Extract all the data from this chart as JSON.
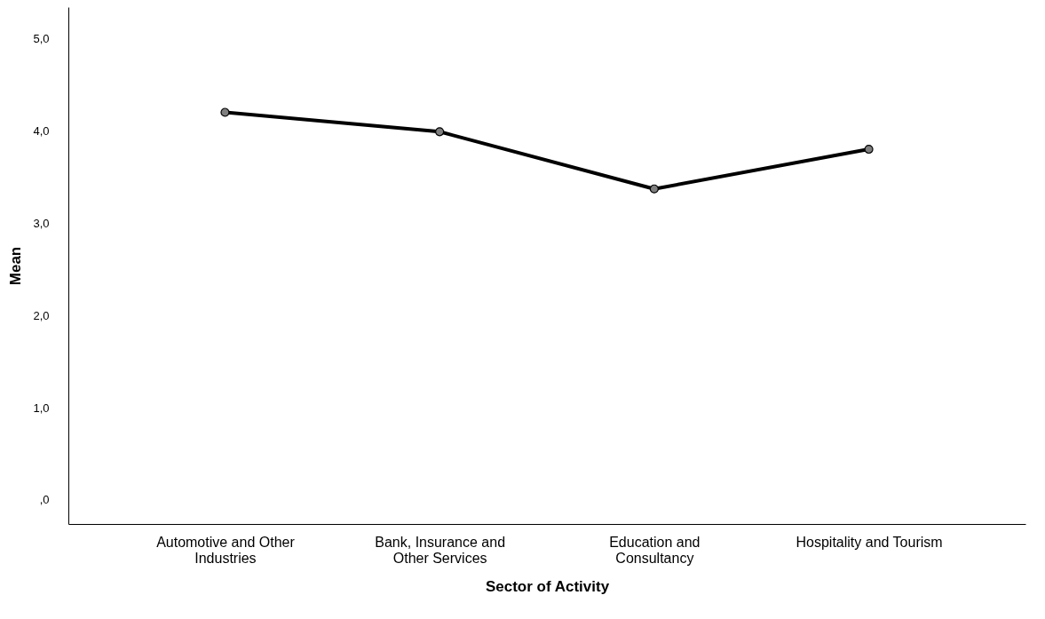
{
  "chart_data": {
    "type": "line",
    "xlabel": "Sector of Activity",
    "ylabel": "Mean",
    "categories": [
      "Automotive and Other Industries",
      "Bank, Insurance and Other Services",
      "Education and Consultancy",
      "Hospitality and Tourism"
    ],
    "series": [
      {
        "color": "#000000",
        "values": [
          4.2,
          3.99,
          3.37,
          3.8
        ]
      }
    ],
    "ylim": [
      -0.26,
      5.34
    ],
    "yticks": [
      {
        "value": 0,
        "label": ",0"
      },
      {
        "value": 1,
        "label": "1,0"
      },
      {
        "value": 2,
        "label": "2,0"
      },
      {
        "value": 3,
        "label": "3,0"
      },
      {
        "value": 4,
        "label": "4,0"
      },
      {
        "value": 5,
        "label": "5,0"
      }
    ],
    "grid": false,
    "marker": "circle",
    "line_style": "solid"
  }
}
